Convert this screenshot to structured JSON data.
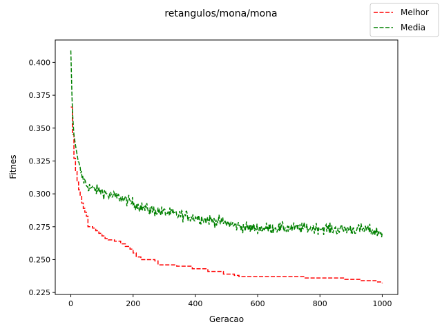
{
  "chart_data": {
    "type": "line",
    "title": "retangulos/mona/mona",
    "xlabel": "Geracao",
    "ylabel": "Fitnes",
    "xlim": [
      -50,
      1050
    ],
    "ylim": [
      0.2235,
      0.417
    ],
    "xticks": [
      0,
      200,
      400,
      600,
      800,
      1000
    ],
    "yticks": [
      0.225,
      0.25,
      0.275,
      0.3,
      0.325,
      0.35,
      0.375,
      0.4
    ],
    "grid": false,
    "legend": {
      "position": "top-right outside axes"
    },
    "series": [
      {
        "name": "Melhor",
        "color": "#ff0000",
        "style": "dashed",
        "step": true,
        "points": [
          [
            0,
            0.366
          ],
          [
            5,
            0.345
          ],
          [
            10,
            0.327
          ],
          [
            15,
            0.317
          ],
          [
            20,
            0.309
          ],
          [
            25,
            0.303
          ],
          [
            30,
            0.298
          ],
          [
            35,
            0.293
          ],
          [
            40,
            0.289
          ],
          [
            45,
            0.286
          ],
          [
            50,
            0.283
          ],
          [
            55,
            0.275
          ],
          [
            70,
            0.274
          ],
          [
            80,
            0.272
          ],
          [
            90,
            0.27
          ],
          [
            100,
            0.268
          ],
          [
            110,
            0.266
          ],
          [
            120,
            0.265
          ],
          [
            140,
            0.264
          ],
          [
            160,
            0.262
          ],
          [
            175,
            0.26
          ],
          [
            190,
            0.258
          ],
          [
            200,
            0.255
          ],
          [
            210,
            0.252
          ],
          [
            225,
            0.25
          ],
          [
            270,
            0.249
          ],
          [
            280,
            0.246
          ],
          [
            340,
            0.245
          ],
          [
            390,
            0.243
          ],
          [
            440,
            0.241
          ],
          [
            490,
            0.239
          ],
          [
            525,
            0.238
          ],
          [
            540,
            0.237
          ],
          [
            600,
            0.237
          ],
          [
            750,
            0.236
          ],
          [
            880,
            0.235
          ],
          [
            930,
            0.234
          ],
          [
            980,
            0.233
          ],
          [
            1000,
            0.232
          ]
        ]
      },
      {
        "name": "Media",
        "color": "#008000",
        "style": "dashed",
        "points": [
          [
            0,
            0.409
          ],
          [
            2,
            0.39
          ],
          [
            4,
            0.372
          ],
          [
            6,
            0.36
          ],
          [
            8,
            0.352
          ],
          [
            10,
            0.345
          ],
          [
            15,
            0.337
          ],
          [
            20,
            0.33
          ],
          [
            25,
            0.323
          ],
          [
            30,
            0.318
          ],
          [
            35,
            0.314
          ],
          [
            40,
            0.311
          ],
          [
            45,
            0.309
          ],
          [
            50,
            0.307
          ],
          [
            60,
            0.305
          ],
          [
            80,
            0.303
          ],
          [
            100,
            0.302
          ],
          [
            120,
            0.299
          ],
          [
            140,
            0.298
          ],
          [
            160,
            0.297
          ],
          [
            180,
            0.295
          ],
          [
            200,
            0.293
          ],
          [
            225,
            0.29
          ],
          [
            250,
            0.288
          ],
          [
            275,
            0.287
          ],
          [
            300,
            0.286
          ],
          [
            325,
            0.285
          ],
          [
            350,
            0.284
          ],
          [
            375,
            0.283
          ],
          [
            400,
            0.282
          ],
          [
            425,
            0.281
          ],
          [
            450,
            0.28
          ],
          [
            475,
            0.279
          ],
          [
            500,
            0.278
          ],
          [
            525,
            0.276
          ],
          [
            550,
            0.275
          ],
          [
            575,
            0.274
          ],
          [
            600,
            0.274
          ],
          [
            650,
            0.274
          ],
          [
            700,
            0.274
          ],
          [
            750,
            0.274
          ],
          [
            800,
            0.274
          ],
          [
            850,
            0.273
          ],
          [
            900,
            0.273
          ],
          [
            950,
            0.273
          ],
          [
            1000,
            0.27
          ]
        ],
        "noise": 0.0045
      }
    ]
  }
}
